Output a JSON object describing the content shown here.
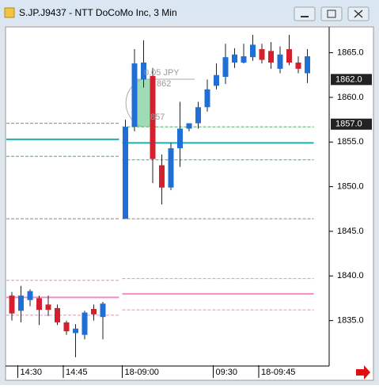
{
  "chart_data": {
    "type": "candlestick",
    "title": "S.JP.J9437 - NTT DoCoMo Inc, 3 Min",
    "categories": [
      null,
      "14:30",
      null,
      null,
      null,
      null,
      "14:45",
      null,
      null,
      null,
      null,
      "18-09:00",
      null,
      null,
      null,
      null,
      null,
      null,
      null,
      null,
      null,
      "09:30",
      null,
      null,
      null,
      null,
      "18-09:45",
      null,
      null,
      null,
      null,
      null
    ],
    "open": [
      1837.8,
      1836.1,
      1837.3,
      1837.5,
      1836.8,
      1836.4,
      1834.8,
      1833.6,
      1833.4,
      1836.3,
      1835.4,
      1846.4,
      1856.7,
      1862.0,
      1862.4,
      1852.4,
      1849.9,
      1854.3,
      1856.5,
      1857.1,
      1858.9,
      1861.3,
      1862.3,
      1863.9,
      1863.9,
      1864.5,
      1865.4,
      1865.2,
      1863.2,
      1865.4,
      1863.9,
      1862.7
    ],
    "high": [
      1838.2,
      1838.9,
      1838.5,
      1837.8,
      1837.8,
      1836.8,
      1835.0,
      1834.6,
      1836.1,
      1836.8,
      1837.1,
      1857.5,
      1865.4,
      1866.4,
      1863.3,
      1853.6,
      1854.9,
      1859.5,
      1857.0,
      1859.5,
      1862.0,
      1863.8,
      1866.0,
      1865.5,
      1866.0,
      1867.0,
      1866.0,
      1866.2,
      1865.7,
      1867.0,
      1864.6,
      1865.4
    ],
    "low": [
      1835.0,
      1834.8,
      1836.6,
      1834.5,
      1835.5,
      1834.5,
      1833.4,
      1830.9,
      1832.9,
      1835.0,
      1832.9,
      1846.4,
      1856.2,
      1861.1,
      1850.4,
      1848.0,
      1849.6,
      1852.2,
      1856.2,
      1856.5,
      1858.4,
      1860.9,
      1861.5,
      1863.3,
      1863.8,
      1864.1,
      1863.8,
      1863.2,
      1862.7,
      1863.6,
      1862.7,
      1861.6
    ],
    "close": [
      1835.8,
      1837.8,
      1838.3,
      1836.2,
      1836.2,
      1834.8,
      1833.8,
      1834.1,
      1835.9,
      1835.7,
      1836.9,
      1856.7,
      1863.8,
      1863.9,
      1853.1,
      1849.9,
      1854.3,
      1856.5,
      1857.1,
      1858.9,
      1860.9,
      1862.5,
      1864.5,
      1864.8,
      1864.6,
      1865.9,
      1864.2,
      1863.9,
      1864.8,
      1863.9,
      1863.2,
      1864.6
    ],
    "up_color": "#1f6fd6",
    "down_color": "#d3202c",
    "ylim": [
      1830,
      1867.8
    ],
    "yticks": [
      {
        "value": 1835,
        "label": "1835.0"
      },
      {
        "value": 1840,
        "label": "1840.0"
      },
      {
        "value": 1845,
        "label": "1845.0"
      },
      {
        "value": 1850,
        "label": "1850.0"
      },
      {
        "value": 1855,
        "label": "1855.0"
      },
      {
        "value": 1860,
        "label": "1860.0"
      },
      {
        "value": 1865,
        "label": "1865.0"
      }
    ],
    "price_tags": [
      {
        "value": 1862,
        "label": "1862.0"
      },
      {
        "value": 1857,
        "label": "1857.0"
      }
    ],
    "lines": [
      {
        "color": "#3cb45a",
        "dash": true,
        "values": [
          1857.1,
          1856.7
        ]
      },
      {
        "color": "#19b0b0",
        "dash": false,
        "values": [
          1855.3,
          1854.9
        ]
      },
      {
        "color": "#3cb45a",
        "dash": true,
        "values": [
          1853.4,
          1853.0
        ]
      },
      {
        "color": "#888888",
        "dash": true,
        "values": [
          1846.4,
          1846.4
        ]
      },
      {
        "color": "#f08cc8",
        "dash": true,
        "values": [
          1839.5,
          1839.7
        ]
      },
      {
        "color": "#f08cc8",
        "dash": false,
        "values": [
          1837.6,
          1838.0
        ]
      },
      {
        "color": "#f08cc8",
        "dash": true,
        "values": [
          1835.6,
          1836.2
        ]
      }
    ],
    "annotations": [
      "0.05 JPY",
      "862",
      "857"
    ]
  }
}
